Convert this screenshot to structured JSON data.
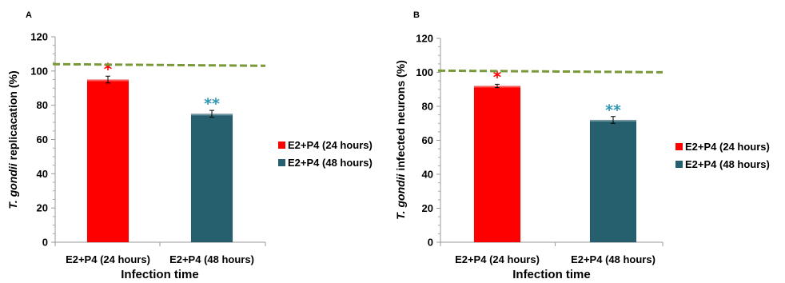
{
  "chart_data": [
    {
      "panel_label": "A",
      "type": "bar",
      "categories": [
        "E2+P4 (24 hours)",
        "E2+P4 (48 hours)"
      ],
      "values": [
        95,
        75
      ],
      "errors": [
        2,
        2
      ],
      "markers": [
        "*",
        "**"
      ],
      "marker_colors": [
        "#ff0000",
        "#2f96b4"
      ],
      "bar_colors": [
        "#ff0000",
        "#265f6e"
      ],
      "series": [
        {
          "name": "E2+P4 (24 hours)",
          "color": "#ff0000"
        },
        {
          "name": "E2+P4 (48 hours)",
          "color": "#265f6e"
        }
      ],
      "reference_line": {
        "value": 104,
        "color": "#7a9a3a",
        "style": "dashed"
      },
      "xlabel": "Infection time",
      "ylabel_italic": "T. gondii",
      "ylabel_rest": "  replicacation (%)",
      "ylim": [
        0,
        120
      ],
      "yticks": [
        "0",
        "20",
        "40",
        "60",
        "80",
        "100",
        "120"
      ],
      "grid": false,
      "legend": "right"
    },
    {
      "panel_label": "B",
      "type": "bar",
      "categories": [
        "E2+P4 (24 hours)",
        "E2+P4 (48 hours)"
      ],
      "values": [
        92,
        72
      ],
      "errors": [
        1,
        2
      ],
      "markers": [
        "*",
        "**"
      ],
      "marker_colors": [
        "#ff0000",
        "#2f96b4"
      ],
      "bar_colors": [
        "#ff0000",
        "#265f6e"
      ],
      "series": [
        {
          "name": "E2+P4 (24 hours)",
          "color": "#ff0000"
        },
        {
          "name": "E2+P4 (48 hours)",
          "color": "#265f6e"
        }
      ],
      "reference_line": {
        "value": 101,
        "color": "#7a9a3a",
        "style": "dashed"
      },
      "xlabel": "Infection time",
      "ylabel_italic": "T. gondii",
      "ylabel_rest": " infected neurons (%)",
      "ylim": [
        0,
        120
      ],
      "yticks": [
        "0",
        "20",
        "40",
        "60",
        "80",
        "100",
        "120"
      ],
      "grid": false,
      "legend": "right"
    }
  ]
}
